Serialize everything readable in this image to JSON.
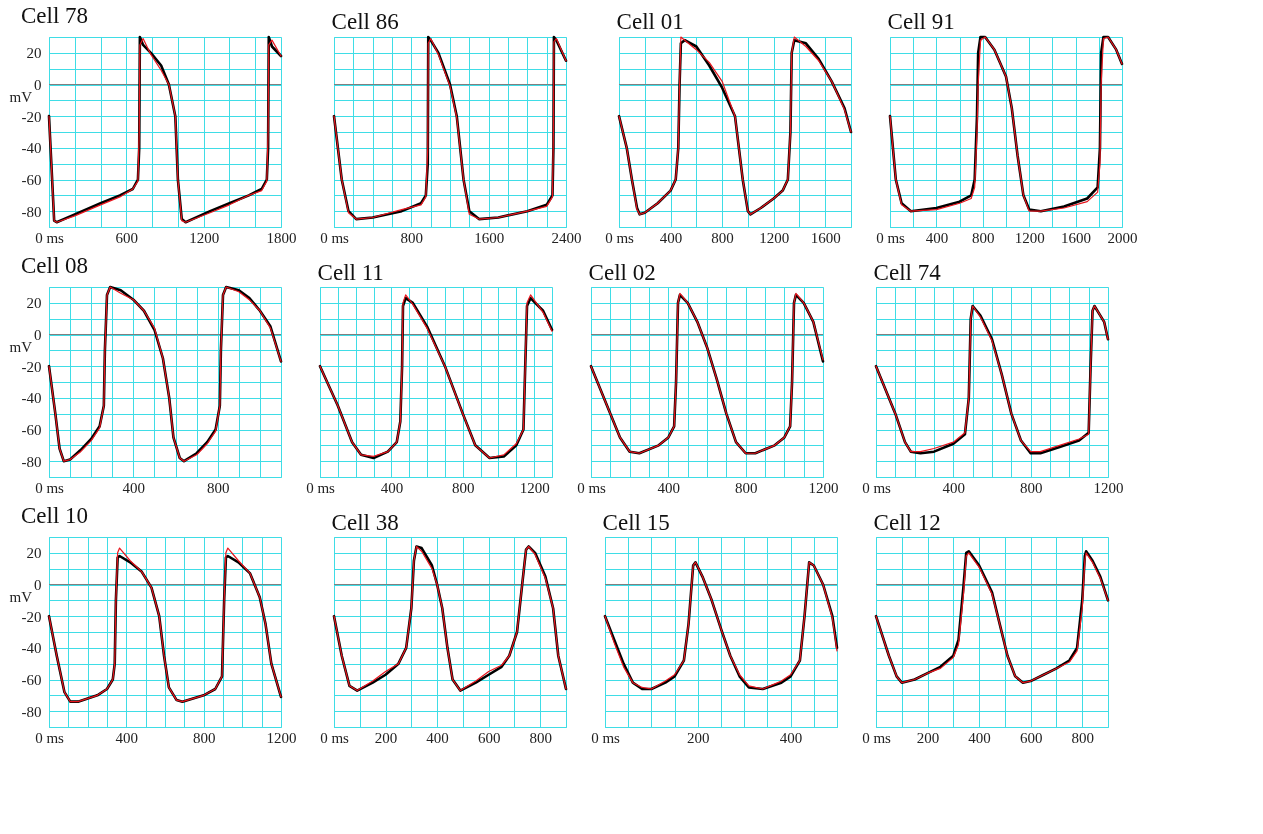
{
  "chart_data": [
    {
      "type": "line",
      "title": "Cell 78",
      "ylabel": "mV",
      "xlim": [
        0,
        1800
      ],
      "ylim": [
        -90,
        30
      ],
      "grid": true,
      "xticks": [
        {
          "value": 0,
          "label": "0 ms"
        },
        {
          "value": 200,
          "label": null
        },
        {
          "value": 400,
          "label": null
        },
        600,
        {
          "value": 800,
          "label": null
        },
        {
          "value": 1000,
          "label": null
        },
        1200,
        {
          "value": 1400,
          "label": null
        },
        {
          "value": 1600,
          "label": null
        },
        1800
      ],
      "yticks": [
        {
          "value": 30,
          "label": null
        },
        20,
        {
          "value": 10,
          "label": null
        },
        0,
        {
          "value": -10,
          "label": null
        },
        -20,
        {
          "value": -30,
          "label": null
        },
        -40,
        {
          "value": -50,
          "label": null
        },
        -60,
        {
          "value": -70,
          "label": null
        },
        -80,
        {
          "value": -90,
          "label": null
        }
      ],
      "ref_lines": [
        {
          "axis": "y",
          "value": 0,
          "color": "#808080"
        }
      ],
      "x": [
        0,
        40,
        60,
        200,
        400,
        550,
        650,
        690,
        700,
        705,
        730,
        790,
        870,
        930,
        980,
        1000,
        1030,
        1060,
        1250,
        1400,
        1550,
        1650,
        1690,
        1700,
        1705,
        1730,
        1800
      ],
      "series": [
        {
          "color": "#e8141c",
          "values": [
            -20,
            -86,
            -87,
            -83,
            -76,
            -71,
            -66,
            -61,
            -30,
            25,
            29,
            19,
            9,
            0,
            -20,
            -60,
            -86,
            -87,
            -81,
            -76,
            -70,
            -67,
            -61,
            -30,
            25,
            28,
            18
          ]
        },
        {
          "color": "#000000",
          "values": [
            -20,
            -86,
            -87,
            -82,
            -75,
            -70,
            -66,
            -60,
            -40,
            30,
            25,
            20,
            12,
            0,
            -20,
            -60,
            -85,
            -87,
            -80,
            -75,
            -70,
            -66,
            -60,
            -40,
            30,
            24,
            18
          ]
        }
      ]
    },
    {
      "type": "line",
      "title": "Cell 86",
      "tick_labels": "x",
      "xlim": [
        0,
        2400
      ],
      "ylim": [
        -90,
        30
      ],
      "grid": true,
      "xticks": [
        {
          "value": 0,
          "label": "0 ms"
        },
        {
          "value": 200,
          "label": null
        },
        {
          "value": 400,
          "label": null
        },
        {
          "value": 600,
          "label": null
        },
        800,
        {
          "value": 1000,
          "label": null
        },
        {
          "value": 1200,
          "label": null
        },
        {
          "value": 1400,
          "label": null
        },
        1600,
        {
          "value": 1800,
          "label": null
        },
        {
          "value": 2000,
          "label": null
        },
        {
          "value": 2200,
          "label": null
        },
        2400
      ],
      "yticks": [
        {
          "value": 30,
          "label": null
        },
        20,
        {
          "value": 10,
          "label": null
        },
        0,
        {
          "value": -10,
          "label": null
        },
        -20,
        {
          "value": -30,
          "label": null
        },
        -40,
        {
          "value": -50,
          "label": null
        },
        -60,
        {
          "value": -70,
          "label": null
        },
        -80,
        {
          "value": -90,
          "label": null
        }
      ],
      "ref_lines": [
        {
          "axis": "y",
          "value": 0,
          "color": "#808080"
        }
      ],
      "x": [
        0,
        80,
        150,
        230,
        400,
        700,
        900,
        950,
        970,
        975,
        1000,
        1080,
        1200,
        1270,
        1340,
        1400,
        1500,
        1700,
        2000,
        2200,
        2260,
        2270,
        2275,
        2300,
        2400
      ],
      "series": [
        {
          "color": "#e8141c",
          "values": [
            -20,
            -60,
            -81,
            -85,
            -84,
            -79,
            -76,
            -71,
            -40,
            26,
            29,
            19,
            -1,
            -21,
            -60,
            -82,
            -85,
            -84,
            -80,
            -77,
            -71,
            -30,
            27,
            29,
            15
          ]
        },
        {
          "color": "#000000",
          "values": [
            -20,
            -60,
            -80,
            -85,
            -84,
            -80,
            -75,
            -70,
            -50,
            30,
            28,
            20,
            0,
            -20,
            -60,
            -80,
            -85,
            -84,
            -80,
            -76,
            -70,
            -40,
            30,
            28,
            15
          ]
        }
      ]
    },
    {
      "type": "line",
      "title": "Cell 01",
      "tick_labels": "x",
      "xlim": [
        0,
        1800
      ],
      "ylim": [
        -90,
        30
      ],
      "grid": true,
      "xticks": [
        {
          "value": 0,
          "label": "0 ms"
        },
        {
          "value": 200,
          "label": null
        },
        400,
        {
          "value": 600,
          "label": null
        },
        800,
        {
          "value": 1000,
          "label": null
        },
        1200,
        {
          "value": 1400,
          "label": null
        },
        1600,
        {
          "value": 1800,
          "label": null
        }
      ],
      "yticks": [
        {
          "value": 30,
          "label": null
        },
        20,
        {
          "value": 10,
          "label": null
        },
        0,
        {
          "value": -10,
          "label": null
        },
        -20,
        {
          "value": -30,
          "label": null
        },
        -40,
        {
          "value": -50,
          "label": null
        },
        -60,
        {
          "value": -70,
          "label": null
        },
        -80,
        {
          "value": -90,
          "label": null
        }
      ],
      "ref_lines": [
        {
          "axis": "y",
          "value": 0,
          "color": "#808080"
        }
      ],
      "x": [
        0,
        60,
        100,
        140,
        160,
        200,
        300,
        400,
        440,
        460,
        470,
        480,
        510,
        600,
        700,
        800,
        900,
        930,
        960,
        1000,
        1020,
        1100,
        1200,
        1270,
        1310,
        1330,
        1340,
        1360,
        1450,
        1550,
        1650,
        1750,
        1800
      ],
      "series": [
        {
          "color": "#e8141c",
          "values": [
            -20,
            -40,
            -60,
            -79,
            -82,
            -81,
            -75,
            -67,
            -60,
            -40,
            0,
            30,
            28,
            22,
            14,
            2,
            -20,
            -40,
            -60,
            -80,
            -82,
            -78,
            -72,
            -67,
            -60,
            -30,
            20,
            30,
            24,
            15,
            2,
            -16,
            -30
          ]
        },
        {
          "color": "#000000",
          "values": [
            -20,
            -40,
            -60,
            -78,
            -82,
            -81,
            -75,
            -67,
            -60,
            -40,
            0,
            26,
            28,
            24,
            12,
            -2,
            -20,
            -40,
            -60,
            -80,
            -82,
            -78,
            -72,
            -67,
            -60,
            -30,
            20,
            28,
            26,
            16,
            2,
            -15,
            -30
          ]
        }
      ]
    },
    {
      "type": "line",
      "title": "Cell 91",
      "tick_labels": "x",
      "xlim": [
        0,
        2000
      ],
      "ylim": [
        -90,
        30
      ],
      "grid": true,
      "xticks": [
        {
          "value": 0,
          "label": "0 ms"
        },
        {
          "value": 200,
          "label": null
        },
        400,
        {
          "value": 600,
          "label": null
        },
        800,
        {
          "value": 1000,
          "label": null
        },
        1200,
        {
          "value": 1400,
          "label": null
        },
        1600,
        {
          "value": 1800,
          "label": null
        },
        2000
      ],
      "yticks": [
        {
          "value": 30,
          "label": null
        },
        20,
        {
          "value": 10,
          "label": null
        },
        0,
        {
          "value": -10,
          "label": null
        },
        -20,
        {
          "value": -30,
          "label": null
        },
        -40,
        {
          "value": -50,
          "label": null
        },
        -60,
        {
          "value": -70,
          "label": null
        },
        -80,
        {
          "value": -90,
          "label": null
        }
      ],
      "ref_lines": [
        {
          "axis": "y",
          "value": 0,
          "color": "#808080"
        }
      ],
      "x": [
        0,
        50,
        100,
        180,
        400,
        600,
        700,
        730,
        750,
        760,
        780,
        820,
        900,
        1000,
        1050,
        1100,
        1150,
        1200,
        1300,
        1500,
        1700,
        1790,
        1810,
        1820,
        1840,
        1880,
        1950,
        2000
      ],
      "series": [
        {
          "color": "#e8141c",
          "values": [
            -20,
            -60,
            -76,
            -80,
            -79,
            -75,
            -72,
            -65,
            -30,
            0,
            28,
            30,
            22,
            5,
            -15,
            -45,
            -70,
            -80,
            -80,
            -78,
            -74,
            -68,
            -50,
            0,
            29,
            30,
            22,
            13
          ]
        },
        {
          "color": "#000000",
          "values": [
            -20,
            -60,
            -75,
            -80,
            -78,
            -74,
            -70,
            -60,
            -20,
            20,
            30,
            30,
            22,
            5,
            -15,
            -45,
            -70,
            -79,
            -80,
            -77,
            -72,
            -65,
            -40,
            20,
            30,
            30,
            22,
            13
          ]
        }
      ]
    },
    {
      "type": "line",
      "title": "Cell 08",
      "ylabel": "mV",
      "xlim": [
        0,
        1100
      ],
      "ylim": [
        -90,
        30
      ],
      "grid": true,
      "xticks": [
        {
          "value": 0,
          "label": "0 ms"
        },
        {
          "value": 100,
          "label": null
        },
        {
          "value": 200,
          "label": null
        },
        {
          "value": 300,
          "label": null
        },
        400,
        {
          "value": 500,
          "label": null
        },
        {
          "value": 600,
          "label": null
        },
        {
          "value": 700,
          "label": null
        },
        800,
        {
          "value": 900,
          "label": null
        },
        {
          "value": 1000,
          "label": null
        },
        {
          "value": 1100,
          "label": null
        }
      ],
      "yticks": [
        {
          "value": 30,
          "label": null
        },
        20,
        {
          "value": 10,
          "label": null
        },
        0,
        {
          "value": -10,
          "label": null
        },
        -20,
        {
          "value": -30,
          "label": null
        },
        -40,
        {
          "value": -50,
          "label": null
        },
        -60,
        {
          "value": -70,
          "label": null
        },
        -80,
        {
          "value": -90,
          "label": null
        }
      ],
      "ref_lines": [
        {
          "axis": "y",
          "value": 0,
          "color": "#808080"
        }
      ],
      "x": [
        0,
        30,
        50,
        70,
        100,
        150,
        200,
        240,
        260,
        265,
        275,
        290,
        340,
        400,
        450,
        500,
        540,
        570,
        590,
        620,
        640,
        700,
        750,
        790,
        810,
        815,
        825,
        840,
        900,
        950,
        1000,
        1050,
        1100
      ],
      "series": [
        {
          "color": "#e8141c",
          "values": [
            -20,
            -50,
            -72,
            -80,
            -79,
            -74,
            -67,
            -59,
            -45,
            -10,
            25,
            30,
            26,
            22,
            15,
            4,
            -15,
            -40,
            -65,
            -78,
            -80,
            -76,
            -69,
            -61,
            -45,
            -10,
            25,
            30,
            27,
            22,
            15,
            4,
            -17
          ]
        },
        {
          "color": "#000000",
          "values": [
            -20,
            -50,
            -72,
            -80,
            -79,
            -73,
            -66,
            -58,
            -45,
            -10,
            25,
            30,
            28,
            22,
            15,
            3,
            -15,
            -40,
            -65,
            -78,
            -80,
            -75,
            -68,
            -60,
            -45,
            -10,
            25,
            30,
            28,
            23,
            15,
            5,
            -17
          ]
        }
      ]
    },
    {
      "type": "line",
      "title": "Cell 11",
      "tick_labels": "x",
      "xlim": [
        0,
        1300
      ],
      "ylim": [
        -90,
        30
      ],
      "grid": true,
      "xticks": [
        {
          "value": 0,
          "label": "0 ms"
        },
        {
          "value": 100,
          "label": null
        },
        {
          "value": 200,
          "label": null
        },
        {
          "value": 300,
          "label": null
        },
        400,
        {
          "value": 500,
          "label": null
        },
        {
          "value": 600,
          "label": null
        },
        {
          "value": 700,
          "label": null
        },
        800,
        {
          "value": 900,
          "label": null
        },
        {
          "value": 1000,
          "label": null
        },
        {
          "value": 1100,
          "label": null
        },
        1200,
        {
          "value": 1300,
          "label": null
        }
      ],
      "yticks": [
        {
          "value": 30,
          "label": null
        },
        20,
        {
          "value": 10,
          "label": null
        },
        0,
        {
          "value": -10,
          "label": null
        },
        -20,
        {
          "value": -30,
          "label": null
        },
        -40,
        {
          "value": -50,
          "label": null
        },
        -60,
        {
          "value": -70,
          "label": null
        },
        -80,
        {
          "value": -90,
          "label": null
        }
      ],
      "ref_lines": [
        {
          "axis": "y",
          "value": 0,
          "color": "#808080"
        }
      ],
      "x": [
        0,
        100,
        180,
        230,
        300,
        380,
        430,
        450,
        460,
        465,
        480,
        520,
        600,
        700,
        800,
        870,
        950,
        1030,
        1100,
        1140,
        1150,
        1160,
        1180,
        1250,
        1300
      ],
      "series": [
        {
          "color": "#e8141c",
          "values": [
            -20,
            -45,
            -68,
            -76,
            -77,
            -74,
            -68,
            -55,
            -20,
            20,
            25,
            19,
            4,
            -20,
            -50,
            -70,
            -78,
            -76,
            -69,
            -60,
            -20,
            20,
            25,
            14,
            2
          ]
        },
        {
          "color": "#000000",
          "values": [
            -20,
            -45,
            -68,
            -76,
            -78,
            -74,
            -68,
            -55,
            -20,
            18,
            23,
            20,
            5,
            -20,
            -50,
            -70,
            -78,
            -77,
            -70,
            -60,
            -20,
            18,
            23,
            15,
            3
          ]
        }
      ]
    },
    {
      "type": "line",
      "title": "Cell 02",
      "tick_labels": "x",
      "xlim": [
        0,
        1200
      ],
      "ylim": [
        -90,
        30
      ],
      "grid": true,
      "xticks": [
        {
          "value": 0,
          "label": "0 ms"
        },
        {
          "value": 100,
          "label": null
        },
        {
          "value": 200,
          "label": null
        },
        {
          "value": 300,
          "label": null
        },
        400,
        {
          "value": 500,
          "label": null
        },
        {
          "value": 600,
          "label": null
        },
        {
          "value": 700,
          "label": null
        },
        800,
        {
          "value": 900,
          "label": null
        },
        {
          "value": 1000,
          "label": null
        },
        {
          "value": 1100,
          "label": null
        },
        1200
      ],
      "yticks": [
        {
          "value": 30,
          "label": null
        },
        20,
        {
          "value": 10,
          "label": null
        },
        0,
        {
          "value": -10,
          "label": null
        },
        -20,
        {
          "value": -30,
          "label": null
        },
        -40,
        {
          "value": -50,
          "label": null
        },
        -60,
        {
          "value": -70,
          "label": null
        },
        -80,
        {
          "value": -90,
          "label": null
        }
      ],
      "ref_lines": [
        {
          "axis": "y",
          "value": 0,
          "color": "#808080"
        }
      ],
      "x": [
        0,
        100,
        150,
        200,
        250,
        350,
        400,
        430,
        440,
        450,
        460,
        500,
        550,
        600,
        650,
        700,
        750,
        800,
        850,
        950,
        1000,
        1030,
        1040,
        1050,
        1060,
        1100,
        1150,
        1200
      ],
      "series": [
        {
          "color": "#e8141c",
          "values": [
            -20,
            -50,
            -65,
            -74,
            -75,
            -70,
            -65,
            -58,
            -30,
            20,
            26,
            20,
            8,
            -8,
            -28,
            -50,
            -68,
            -75,
            -75,
            -70,
            -65,
            -58,
            -30,
            20,
            26,
            20,
            8,
            -16
          ]
        },
        {
          "color": "#000000",
          "values": [
            -20,
            -50,
            -65,
            -74,
            -75,
            -70,
            -65,
            -58,
            -30,
            20,
            25,
            20,
            8,
            -8,
            -28,
            -50,
            -68,
            -75,
            -75,
            -70,
            -65,
            -58,
            -30,
            20,
            25,
            20,
            8,
            -17
          ]
        }
      ]
    },
    {
      "type": "line",
      "title": "Cell 74",
      "tick_labels": "x",
      "xlim": [
        0,
        1200
      ],
      "ylim": [
        -90,
        30
      ],
      "grid": true,
      "xticks": [
        {
          "value": 0,
          "label": "0 ms"
        },
        {
          "value": 100,
          "label": null
        },
        {
          "value": 200,
          "label": null
        },
        {
          "value": 300,
          "label": null
        },
        400,
        {
          "value": 500,
          "label": null
        },
        {
          "value": 600,
          "label": null
        },
        {
          "value": 700,
          "label": null
        },
        800,
        {
          "value": 900,
          "label": null
        },
        {
          "value": 1000,
          "label": null
        },
        {
          "value": 1100,
          "label": null
        },
        1200
      ],
      "yticks": [
        {
          "value": 30,
          "label": null
        },
        20,
        {
          "value": 10,
          "label": null
        },
        0,
        {
          "value": -10,
          "label": null
        },
        -20,
        {
          "value": -30,
          "label": null
        },
        -40,
        {
          "value": -50,
          "label": null
        },
        -60,
        {
          "value": -70,
          "label": null
        },
        -80,
        {
          "value": -90,
          "label": null
        }
      ],
      "ref_lines": [
        {
          "axis": "y",
          "value": 0,
          "color": "#808080"
        }
      ],
      "x": [
        0,
        100,
        150,
        180,
        230,
        300,
        400,
        460,
        480,
        490,
        500,
        540,
        600,
        650,
        700,
        750,
        800,
        850,
        950,
        1050,
        1100,
        1110,
        1120,
        1130,
        1180,
        1200
      ],
      "series": [
        {
          "color": "#e8141c",
          "values": [
            -20,
            -50,
            -68,
            -74,
            -74,
            -72,
            -68,
            -62,
            -40,
            10,
            18,
            11,
            -4,
            -25,
            -50,
            -67,
            -74,
            -74,
            -70,
            -66,
            -63,
            -20,
            15,
            18,
            8,
            -3
          ]
        },
        {
          "color": "#000000",
          "values": [
            -20,
            -50,
            -68,
            -74,
            -75,
            -74,
            -69,
            -63,
            -40,
            10,
            18,
            12,
            -3,
            -25,
            -50,
            -67,
            -75,
            -75,
            -71,
            -67,
            -62,
            -20,
            15,
            18,
            8,
            -3
          ]
        }
      ]
    },
    {
      "type": "line",
      "title": "Cell 10",
      "ylabel": "mV",
      "xlim": [
        0,
        1200
      ],
      "ylim": [
        -90,
        30
      ],
      "grid": true,
      "xticks": [
        {
          "value": 0,
          "label": "0 ms"
        },
        {
          "value": 100,
          "label": null
        },
        {
          "value": 200,
          "label": null
        },
        {
          "value": 300,
          "label": null
        },
        400,
        {
          "value": 500,
          "label": null
        },
        {
          "value": 600,
          "label": null
        },
        {
          "value": 700,
          "label": null
        },
        800,
        {
          "value": 900,
          "label": null
        },
        {
          "value": 1000,
          "label": null
        },
        {
          "value": 1100,
          "label": null
        },
        1200
      ],
      "yticks": [
        {
          "value": 30,
          "label": null
        },
        20,
        {
          "value": 10,
          "label": null
        },
        0,
        {
          "value": -10,
          "label": null
        },
        -20,
        {
          "value": -30,
          "label": null
        },
        -40,
        {
          "value": -50,
          "label": null
        },
        -60,
        {
          "value": -70,
          "label": null
        },
        -80,
        {
          "value": -90,
          "label": null
        }
      ],
      "ref_lines": [
        {
          "axis": "y",
          "value": 0,
          "color": "#808080"
        }
      ],
      "x": [
        0,
        40,
        80,
        110,
        150,
        250,
        300,
        330,
        340,
        346,
        355,
        365,
        420,
        480,
        530,
        570,
        595,
        620,
        660,
        690,
        800,
        860,
        895,
        906,
        915,
        925,
        980,
        1040,
        1090,
        1120,
        1150,
        1200
      ],
      "series": [
        {
          "color": "#e8141c",
          "values": [
            -20,
            -45,
            -68,
            -74,
            -74,
            -70,
            -66,
            -60,
            -50,
            -10,
            20,
            23,
            15,
            8,
            -2,
            -20,
            -45,
            -65,
            -73,
            -74,
            -70,
            -66,
            -58,
            -10,
            20,
            23,
            15,
            7,
            -8,
            -25,
            -50,
            -71
          ]
        },
        {
          "color": "#000000",
          "values": [
            -20,
            -45,
            -68,
            -74,
            -74,
            -70,
            -66,
            -60,
            -50,
            -10,
            17,
            18,
            14,
            8,
            -2,
            -20,
            -45,
            -65,
            -73,
            -74,
            -70,
            -66,
            -58,
            -10,
            17,
            18,
            14,
            7,
            -8,
            -25,
            -50,
            -71
          ]
        }
      ]
    },
    {
      "type": "line",
      "title": "Cell 38",
      "tick_labels": "x",
      "xlim": [
        0,
        900
      ],
      "ylim": [
        -90,
        30
      ],
      "grid": true,
      "xticks": [
        {
          "value": 0,
          "label": "0 ms"
        },
        {
          "value": 100,
          "label": null
        },
        200,
        {
          "value": 300,
          "label": null
        },
        400,
        {
          "value": 500,
          "label": null
        },
        600,
        {
          "value": 700,
          "label": null
        },
        800,
        {
          "value": 900,
          "label": null
        }
      ],
      "yticks": [
        {
          "value": 30,
          "label": null
        },
        20,
        {
          "value": 10,
          "label": null
        },
        0,
        {
          "value": -10,
          "label": null
        },
        -20,
        {
          "value": -30,
          "label": null
        },
        -40,
        {
          "value": -50,
          "label": null
        },
        -60,
        {
          "value": -70,
          "label": null
        },
        -80,
        {
          "value": -90,
          "label": null
        }
      ],
      "ref_lines": [
        {
          "axis": "y",
          "value": 0,
          "color": "#808080"
        }
      ],
      "x": [
        0,
        30,
        60,
        90,
        150,
        200,
        250,
        280,
        300,
        310,
        320,
        340,
        380,
        400,
        420,
        440,
        460,
        490,
        550,
        600,
        650,
        680,
        710,
        730,
        745,
        755,
        780,
        820,
        850,
        870,
        900
      ],
      "series": [
        {
          "color": "#e8141c",
          "values": [
            -20,
            -45,
            -64,
            -67,
            -61,
            -55,
            -50,
            -40,
            -15,
            15,
            24,
            21,
            10,
            0,
            -15,
            -40,
            -60,
            -67,
            -61,
            -55,
            -51,
            -45,
            -30,
            0,
            22,
            24,
            19,
            4,
            -15,
            -45,
            -66
          ]
        },
        {
          "color": "#000000",
          "values": [
            -20,
            -45,
            -64,
            -67,
            -62,
            -57,
            -50,
            -40,
            -15,
            15,
            24,
            23,
            12,
            0,
            -15,
            -40,
            -60,
            -67,
            -62,
            -57,
            -52,
            -45,
            -30,
            0,
            22,
            24,
            20,
            5,
            -15,
            -45,
            -66
          ]
        }
      ]
    },
    {
      "type": "line",
      "title": "Cell 15",
      "tick_labels": "x",
      "xlim": [
        0,
        500
      ],
      "ylim": [
        -90,
        30
      ],
      "grid": true,
      "xticks": [
        {
          "value": 0,
          "label": "0 ms"
        },
        {
          "value": 50,
          "label": null
        },
        {
          "value": 100,
          "label": null
        },
        {
          "value": 150,
          "label": null
        },
        200,
        {
          "value": 250,
          "label": null
        },
        {
          "value": 300,
          "label": null
        },
        {
          "value": 350,
          "label": null
        },
        400,
        {
          "value": 450,
          "label": null
        },
        {
          "value": 500,
          "label": null
        }
      ],
      "yticks": [
        {
          "value": 30,
          "label": null
        },
        20,
        {
          "value": 10,
          "label": null
        },
        0,
        {
          "value": -10,
          "label": null
        },
        -20,
        {
          "value": -30,
          "label": null
        },
        -40,
        {
          "value": -50,
          "label": null
        },
        -60,
        {
          "value": -70,
          "label": null
        },
        -80,
        {
          "value": -90,
          "label": null
        }
      ],
      "ref_lines": [
        {
          "axis": "y",
          "value": 0,
          "color": "#808080"
        }
      ],
      "x": [
        0,
        20,
        40,
        60,
        80,
        100,
        130,
        150,
        170,
        180,
        190,
        195,
        210,
        230,
        250,
        270,
        290,
        310,
        340,
        380,
        400,
        420,
        430,
        440,
        450,
        470,
        490,
        500
      ],
      "series": [
        {
          "color": "#e8141c",
          "values": [
            -20,
            -37,
            -52,
            -62,
            -65,
            -66,
            -61,
            -57,
            -48,
            -25,
            12,
            14,
            5,
            -10,
            -28,
            -45,
            -57,
            -64,
            -66,
            -61,
            -57,
            -48,
            -20,
            14,
            12,
            0,
            -21,
            -42
          ]
        },
        {
          "color": "#000000",
          "values": [
            -20,
            -35,
            -50,
            -62,
            -66,
            -66,
            -62,
            -58,
            -48,
            -25,
            12,
            14,
            5,
            -10,
            -28,
            -45,
            -58,
            -65,
            -66,
            -62,
            -58,
            -48,
            -20,
            14,
            12,
            0,
            -20,
            -40
          ]
        }
      ]
    },
    {
      "type": "line",
      "title": "Cell 12",
      "tick_labels": "x",
      "xlim": [
        0,
        900
      ],
      "ylim": [
        -90,
        30
      ],
      "grid": true,
      "xticks": [
        {
          "value": 0,
          "label": "0 ms"
        },
        {
          "value": 100,
          "label": null
        },
        200,
        {
          "value": 300,
          "label": null
        },
        400,
        {
          "value": 500,
          "label": null
        },
        600,
        {
          "value": 700,
          "label": null
        },
        800,
        {
          "value": 900,
          "label": null
        }
      ],
      "yticks": [
        {
          "value": 30,
          "label": null
        },
        20,
        {
          "value": 10,
          "label": null
        },
        0,
        {
          "value": -10,
          "label": null
        },
        -20,
        {
          "value": -30,
          "label": null
        },
        -40,
        {
          "value": -50,
          "label": null
        },
        -60,
        {
          "value": -70,
          "label": null
        },
        -80,
        {
          "value": -90,
          "label": null
        }
      ],
      "ref_lines": [
        {
          "axis": "y",
          "value": 0,
          "color": "#808080"
        }
      ],
      "x": [
        0,
        50,
        80,
        100,
        150,
        200,
        250,
        300,
        320,
        340,
        350,
        360,
        400,
        450,
        480,
        510,
        540,
        570,
        600,
        650,
        700,
        750,
        780,
        800,
        810,
        815,
        840,
        870,
        900
      ],
      "series": [
        {
          "color": "#e8141c",
          "values": [
            -20,
            -45,
            -58,
            -62,
            -60,
            -56,
            -53,
            -46,
            -38,
            -5,
            18,
            20,
            11,
            -6,
            -25,
            -45,
            -58,
            -62,
            -61,
            -57,
            -53,
            -49,
            -42,
            -15,
            15,
            20,
            14,
            4,
            -10
          ]
        },
        {
          "color": "#000000",
          "values": [
            -20,
            -45,
            -58,
            -62,
            -60,
            -56,
            -52,
            -45,
            -35,
            0,
            20,
            21,
            12,
            -5,
            -25,
            -45,
            -58,
            -62,
            -61,
            -57,
            -53,
            -48,
            -40,
            -10,
            18,
            21,
            15,
            5,
            -10
          ]
        }
      ]
    }
  ]
}
